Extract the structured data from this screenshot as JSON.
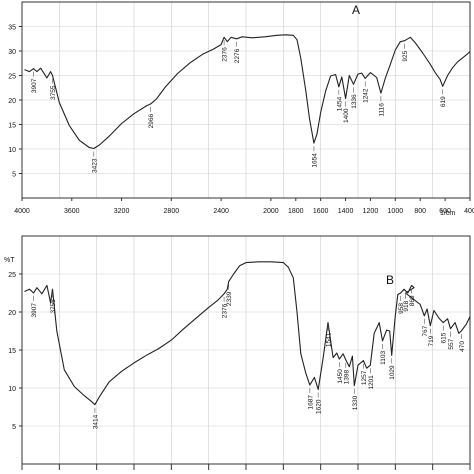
{
  "chart_data": [
    {
      "type": "line",
      "panel_label": "A",
      "title": "",
      "xlabel": "1/cm",
      "ylabel": "",
      "xlim": [
        4000,
        400
      ],
      "ylim": [
        0,
        40
      ],
      "grid": true,
      "xticks": [
        4000,
        3600,
        3200,
        2800,
        2400,
        2000,
        1800,
        1600,
        1400,
        1200,
        1000,
        800,
        600,
        400
      ],
      "xtick_labels": [
        "4000",
        "3600",
        "3200",
        "2800",
        "2400",
        "2000",
        "1800",
        "1600",
        "1400",
        "1200",
        "1000",
        "800",
        "600",
        "400"
      ],
      "yticks": [
        5,
        10,
        15,
        20,
        25,
        30,
        35
      ],
      "ytick_labels": [
        "5",
        "10",
        "15",
        "20",
        "25",
        "30",
        "35"
      ],
      "series": [
        {
          "x": [
            3980,
            3940,
            3907,
            3880,
            3850,
            3800,
            3770,
            3755,
            3700,
            3620,
            3540,
            3460,
            3423,
            3380,
            3300,
            3200,
            3100,
            3000,
            2966,
            2920,
            2850,
            2750,
            2650,
            2550,
            2460,
            2400,
            2376,
            2350,
            2320,
            2276,
            2230,
            2150,
            2050,
            1950,
            1880,
            1820,
            1790,
            1760,
            1720,
            1690,
            1654,
            1630,
            1600,
            1560,
            1520,
            1480,
            1454,
            1430,
            1400,
            1370,
            1336,
            1300,
            1270,
            1242,
            1200,
            1150,
            1116,
            1080,
            1040,
            1000,
            960,
            925,
            880,
            840,
            780,
            720,
            680,
            640,
            619,
            580,
            540,
            500,
            460,
            420,
            400
          ],
          "y": [
            26.2,
            25.8,
            26.4,
            25.8,
            26.5,
            24.5,
            25.8,
            25.0,
            19.5,
            14.8,
            11.8,
            10.3,
            10.1,
            10.8,
            12.6,
            15.2,
            17.2,
            18.8,
            19.2,
            20.2,
            22.6,
            25.4,
            27.6,
            29.3,
            30.4,
            31.3,
            32.8,
            31.9,
            32.8,
            32.5,
            32.9,
            32.7,
            32.9,
            33.2,
            33.3,
            33.2,
            32.3,
            28.5,
            22.0,
            16.2,
            11.2,
            13.0,
            17.5,
            21.8,
            24.9,
            25.2,
            22.7,
            24.7,
            20.3,
            25.0,
            23.2,
            25.3,
            25.5,
            24.4,
            25.6,
            24.6,
            21.4,
            24.5,
            27.3,
            30.2,
            31.9,
            32.1,
            32.8,
            31.7,
            29.6,
            27.3,
            25.6,
            24.2,
            22.8,
            25.0,
            26.6,
            27.8,
            28.6,
            29.4,
            29.9
          ]
        }
      ],
      "peak_labels": [
        {
          "x": 3907,
          "label": "3907"
        },
        {
          "x": 3755,
          "label": "3755"
        },
        {
          "x": 3423,
          "label": "3423"
        },
        {
          "x": 2966,
          "label": "2966"
        },
        {
          "x": 2376,
          "label": "2376"
        },
        {
          "x": 2276,
          "label": "2276"
        },
        {
          "x": 1654,
          "label": "1654"
        },
        {
          "x": 1454,
          "label": "1454"
        },
        {
          "x": 1400,
          "label": "1400"
        },
        {
          "x": 1336,
          "label": "1336"
        },
        {
          "x": 1242,
          "label": "1242"
        },
        {
          "x": 1116,
          "label": "1116"
        },
        {
          "x": 925,
          "label": "925"
        },
        {
          "x": 619,
          "label": "619"
        }
      ]
    },
    {
      "type": "line",
      "panel_label": "B",
      "title": "",
      "xlabel": "",
      "ylabel": "%T",
      "xlim": [
        4000,
        400
      ],
      "ylim": [
        0,
        30
      ],
      "grid": true,
      "xticks": [],
      "xtick_labels": [],
      "yticks": [
        5,
        10,
        15,
        20,
        25
      ],
      "ytick_labels": [
        "5",
        "10",
        "15",
        "20",
        "25"
      ],
      "series": [
        {
          "x": [
            3980,
            3940,
            3907,
            3880,
            3840,
            3800,
            3770,
            3755,
            3720,
            3660,
            3580,
            3500,
            3440,
            3414,
            3380,
            3300,
            3200,
            3100,
            3000,
            2900,
            2800,
            2700,
            2600,
            2500,
            2430,
            2376,
            2350,
            2339,
            2300,
            2250,
            2200,
            2100,
            2000,
            1900,
            1860,
            1820,
            1790,
            1760,
            1720,
            1687,
            1650,
            1620,
            1580,
            1541,
            1500,
            1470,
            1450,
            1420,
            1398,
            1370,
            1345,
            1330,
            1300,
            1257,
            1230,
            1201,
            1170,
            1130,
            1103,
            1070,
            1045,
            1029,
            1000,
            980,
            958,
            930,
            900,
            869,
            850,
            918,
            800,
            767,
            745,
            719,
            690,
            650,
            615,
            580,
            557,
            520,
            490,
            470,
            430,
            400
          ],
          "y": [
            22.7,
            23.0,
            22.5,
            23.2,
            22.4,
            23.5,
            21.2,
            23.0,
            17.5,
            12.4,
            10.2,
            9.0,
            8.2,
            7.8,
            8.8,
            10.8,
            12.2,
            13.3,
            14.3,
            15.2,
            16.3,
            17.8,
            19.2,
            20.6,
            21.5,
            22.4,
            23.0,
            24.0,
            25.0,
            26.1,
            26.5,
            26.6,
            26.6,
            26.5,
            25.9,
            24.5,
            20.0,
            14.5,
            12.0,
            10.4,
            11.4,
            9.8,
            14.0,
            18.6,
            14.0,
            14.6,
            13.8,
            14.5,
            13.7,
            12.8,
            14.2,
            10.3,
            13.0,
            13.6,
            12.6,
            13.0,
            17.2,
            18.6,
            16.2,
            17.6,
            17.5,
            14.3,
            19.5,
            22.3,
            22.5,
            23.0,
            22.5,
            23.5,
            23.2,
            22.5,
            21.0,
            19.5,
            20.4,
            18.2,
            20.2,
            19.2,
            18.6,
            19.1,
            17.8,
            18.6,
            17.2,
            17.5,
            18.4,
            19.4
          ]
        }
      ],
      "peak_labels": [
        {
          "x": 3907,
          "label": "3907"
        },
        {
          "x": 3755,
          "label": "3755"
        },
        {
          "x": 3414,
          "label": "3414"
        },
        {
          "x": 2376,
          "label": "2376"
        },
        {
          "x": 2339,
          "label": "2339"
        },
        {
          "x": 1687,
          "label": "1687"
        },
        {
          "x": 1620,
          "label": "1620"
        },
        {
          "x": 1541,
          "label": "1541"
        },
        {
          "x": 1450,
          "label": "1450"
        },
        {
          "x": 1398,
          "label": "1398"
        },
        {
          "x": 1330,
          "label": "1330"
        },
        {
          "x": 1257,
          "label": "1257"
        },
        {
          "x": 1201,
          "label": "1201"
        },
        {
          "x": 1103,
          "label": "1103"
        },
        {
          "x": 1029,
          "label": "1029"
        },
        {
          "x": 958,
          "label": "958"
        },
        {
          "x": 869,
          "label": "869"
        },
        {
          "x": 918,
          "label": "918"
        },
        {
          "x": 767,
          "label": "767"
        },
        {
          "x": 719,
          "label": "719"
        },
        {
          "x": 615,
          "label": "615"
        },
        {
          "x": 557,
          "label": "557"
        },
        {
          "x": 470,
          "label": "470"
        }
      ]
    }
  ]
}
